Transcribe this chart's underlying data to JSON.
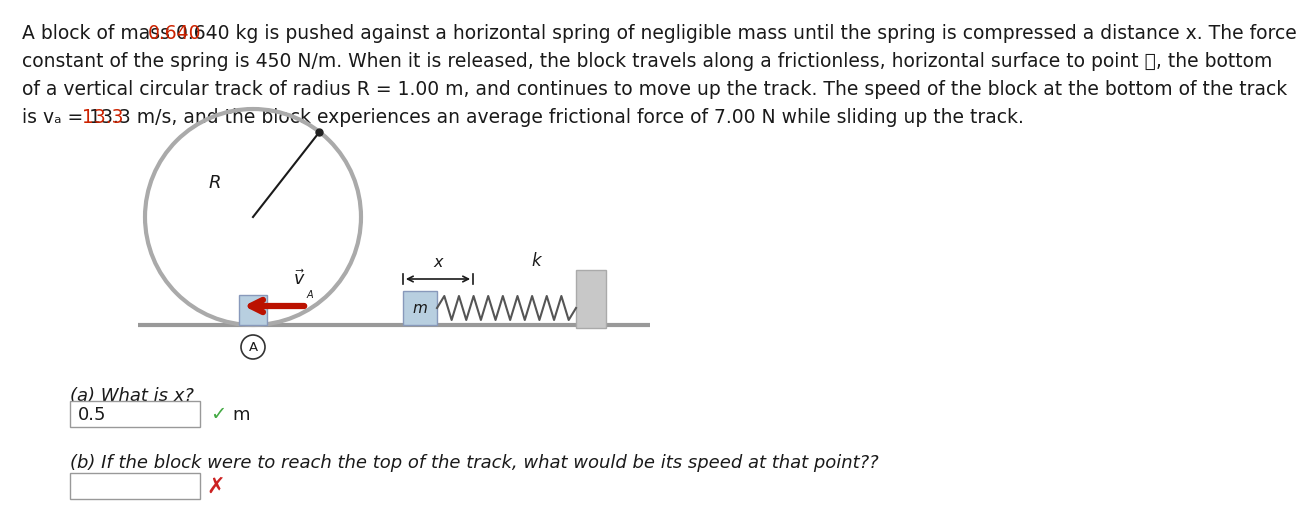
{
  "bg_color": "#ffffff",
  "text_color": "#1a1a1a",
  "highlight_color": "#cc2200",
  "circle_track_color": "#aaaaaa",
  "ground_color": "#999999",
  "block_color": "#b8cfe0",
  "wall_color": "#c8c8c8",
  "arrow_color": "#bb1100",
  "spring_color": "#555555",
  "answer_box_color": "#dddddd",
  "check_color": "#44aa44",
  "cross_color": "#cc2222",
  "line1": "A block of mass 0.640 kg is pushed against a horizontal spring of negligible mass until the spring is compressed a distance x. The force",
  "line1_highlight_word": "0.640",
  "line1_prefix": "A block of mass ",
  "line2": "constant of the spring is 450 N/m. When it is released, the block travels along a frictionless, horizontal surface to point Ⓐ, the bottom",
  "line3": "of a vertical circular track of radius R = 1.00 m, and continues to move up the track. The speed of the block at the bottom of the track",
  "line4": "is vₐ = 13.3 m/s, and the block experiences an average frictional force of 7.00 N while sliding up the track.",
  "line4_highlight": "13.3",
  "line4_prefix": "is vₐ = ",
  "question_a": "(a) What is x?",
  "answer_a": "0.5",
  "unit_a": "m",
  "question_b": "(b) If the block were to reach the top of the track, what would be its speed at that point??",
  "answer_b": "",
  "radius_label": "R",
  "k_label": "k",
  "m_label": "m",
  "x_label": "x"
}
